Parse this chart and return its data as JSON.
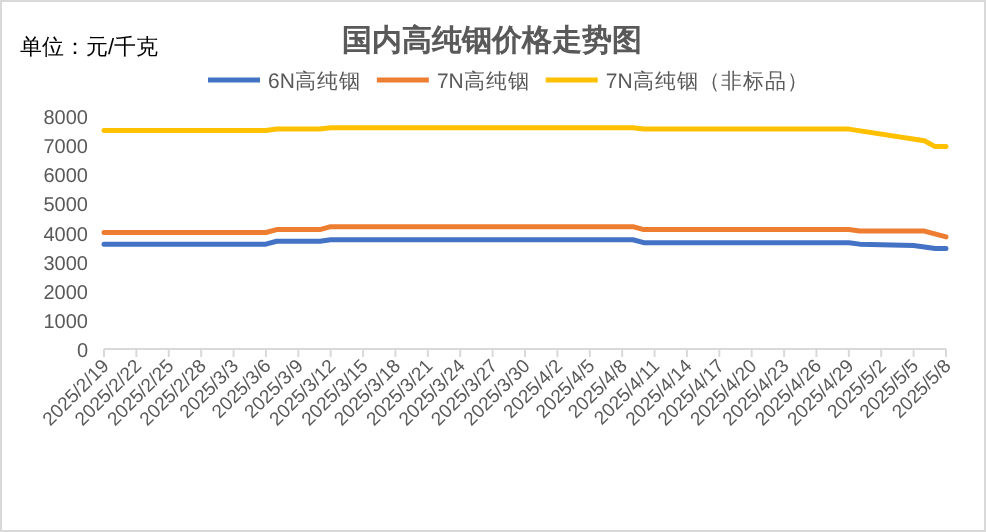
{
  "chart_data": {
    "type": "line",
    "title": "国内高纯铟价格走势图",
    "annotations": [
      "单位：元/千克"
    ],
    "xlim": [
      "2025-02-19",
      "2025-05-08"
    ],
    "xticks": [
      {
        "value": "2025-02-19",
        "label": "2025/2/19"
      },
      {
        "value": "2025-02-22",
        "label": "2025/2/22"
      },
      {
        "value": "2025-02-25",
        "label": "2025/2/25"
      },
      {
        "value": "2025-02-28",
        "label": "2025/2/28"
      },
      {
        "value": "2025-03-03",
        "label": "2025/3/3"
      },
      {
        "value": "2025-03-06",
        "label": "2025/3/6"
      },
      {
        "value": "2025-03-09",
        "label": "2025/3/9"
      },
      {
        "value": "2025-03-12",
        "label": "2025/3/12"
      },
      {
        "value": "2025-03-15",
        "label": "2025/3/15"
      },
      {
        "value": "2025-03-18",
        "label": "2025/3/18"
      },
      {
        "value": "2025-03-21",
        "label": "2025/3/21"
      },
      {
        "value": "2025-03-24",
        "label": "2025/3/24"
      },
      {
        "value": "2025-03-27",
        "label": "2025/3/27"
      },
      {
        "value": "2025-03-30",
        "label": "2025/3/30"
      },
      {
        "value": "2025-04-02",
        "label": "2025/4/2"
      },
      {
        "value": "2025-04-05",
        "label": "2025/4/5"
      },
      {
        "value": "2025-04-08",
        "label": "2025/4/8"
      },
      {
        "value": "2025-04-11",
        "label": "2025/4/11"
      },
      {
        "value": "2025-04-14",
        "label": "2025/4/14"
      },
      {
        "value": "2025-04-17",
        "label": "2025/4/17"
      },
      {
        "value": "2025-04-20",
        "label": "2025/4/20"
      },
      {
        "value": "2025-04-23",
        "label": "2025/4/23"
      },
      {
        "value": "2025-04-26",
        "label": "2025/4/26"
      },
      {
        "value": "2025-04-29",
        "label": "2025/4/29"
      },
      {
        "value": "2025-05-02",
        "label": "2025/5/2"
      },
      {
        "value": "2025-05-05",
        "label": "2025/5/5"
      },
      {
        "value": "2025-05-08",
        "label": "2025/5/8"
      }
    ],
    "ylim": [
      0,
      8000
    ],
    "yticks": [
      0,
      1000,
      2000,
      3000,
      4000,
      5000,
      6000,
      7000,
      8000
    ],
    "legend": "top",
    "series": [
      {
        "name": "6N高纯铟",
        "color": "#4472c4",
        "x": [
          "2025-02-19",
          "2025-03-06",
          "2025-03-07",
          "2025-03-11",
          "2025-03-12",
          "2025-04-09",
          "2025-04-10",
          "2025-04-29",
          "2025-04-30",
          "2025-05-05",
          "2025-05-06",
          "2025-05-07",
          "2025-05-08"
        ],
        "values": [
          3600,
          3600,
          3700,
          3700,
          3750,
          3750,
          3650,
          3650,
          3600,
          3550,
          3500,
          3450,
          3450
        ]
      },
      {
        "name": "7N高纯铟",
        "color": "#ed7d31",
        "x": [
          "2025-02-19",
          "2025-03-06",
          "2025-03-07",
          "2025-03-11",
          "2025-03-12",
          "2025-04-09",
          "2025-04-10",
          "2025-04-29",
          "2025-04-30",
          "2025-05-06",
          "2025-05-08"
        ],
        "values": [
          4000,
          4000,
          4100,
          4100,
          4200,
          4200,
          4100,
          4100,
          4050,
          4050,
          3850
        ]
      },
      {
        "name": "7N高纯铟（非标品）",
        "color": "#ffc000",
        "x": [
          "2025-02-19",
          "2025-03-06",
          "2025-03-07",
          "2025-03-11",
          "2025-03-12",
          "2025-04-09",
          "2025-04-10",
          "2025-04-29",
          "2025-05-06",
          "2025-05-07",
          "2025-05-08"
        ],
        "values": [
          7500,
          7500,
          7550,
          7550,
          7600,
          7600,
          7550,
          7550,
          7150,
          6950,
          6950
        ]
      }
    ]
  }
}
